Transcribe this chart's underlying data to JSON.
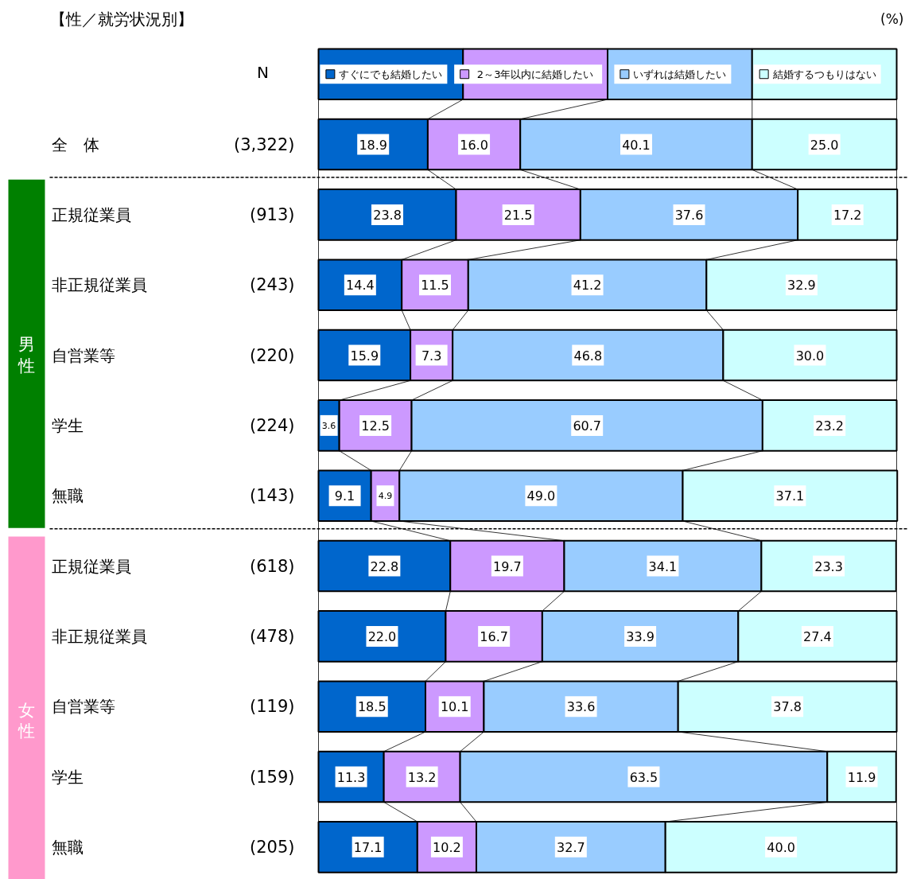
{
  "chart_data": {
    "type": "bar",
    "orientation": "horizontal",
    "stacked": true,
    "title": "【性／就労状況別】",
    "categories": [
      "全　体",
      "正規従業員",
      "非正規従業員",
      "自営業等",
      "学生",
      "無職",
      "正規従業員",
      "非正規従業員",
      "自営業等",
      "学生",
      "無職"
    ],
    "series": [
      {
        "name": "すぐにでも結婚したい",
        "color": "#0066cc",
        "values": [
          18.9,
          23.8,
          14.4,
          15.9,
          3.6,
          9.1,
          22.8,
          22.0,
          18.5,
          11.3,
          17.1
        ],
        "value_labels": [
          "18.9",
          "23.8",
          "14.4",
          "15.9",
          "3.6",
          "9.1",
          "22.8",
          "22.0",
          "18.5",
          "11.3",
          "17.1"
        ]
      },
      {
        "name": "2～3年以内に結婚したい",
        "color": "#cc99ff",
        "values": [
          16.0,
          21.5,
          11.5,
          7.3,
          12.5,
          4.9,
          19.7,
          16.7,
          10.1,
          13.2,
          10.2
        ],
        "value_labels": [
          "16.0",
          "21.5",
          "11.5",
          "7.3",
          "12.5",
          "4.9",
          "19.7",
          "16.7",
          "10.1",
          "13.2",
          "10.2"
        ]
      },
      {
        "name": "いずれは結婚したい",
        "color": "#99ccff",
        "values": [
          40.1,
          37.6,
          41.2,
          46.8,
          60.7,
          49.0,
          34.1,
          33.9,
          33.6,
          63.5,
          32.7
        ],
        "value_labels": [
          "40.1",
          "37.6",
          "41.2",
          "46.8",
          "60.7",
          "49.0",
          "34.1",
          "33.9",
          "33.6",
          "63.5",
          "32.7"
        ]
      },
      {
        "name": "結婚するつもりはない",
        "color": "#ccffff",
        "values": [
          25.0,
          17.2,
          32.9,
          30.0,
          23.2,
          37.1,
          23.3,
          27.4,
          37.8,
          11.9,
          40.0
        ],
        "value_labels": [
          "25.0",
          "17.2",
          "32.9",
          "30.0",
          "23.2",
          "37.1",
          "23.3",
          "27.4",
          "37.8",
          "11.9",
          "40.0"
        ]
      }
    ],
    "xlim": [
      0,
      100
    ],
    "legend": "top",
    "tick_labels": "y",
    "annotations": [
      "(%)",
      "N",
      "(3,322)",
      "(913)",
      "(243)",
      "(220)",
      "(224)",
      "(143)",
      "(618)",
      "(478)",
      "(119)",
      "(159)",
      "(205)",
      "男性",
      "女性"
    ]
  }
}
